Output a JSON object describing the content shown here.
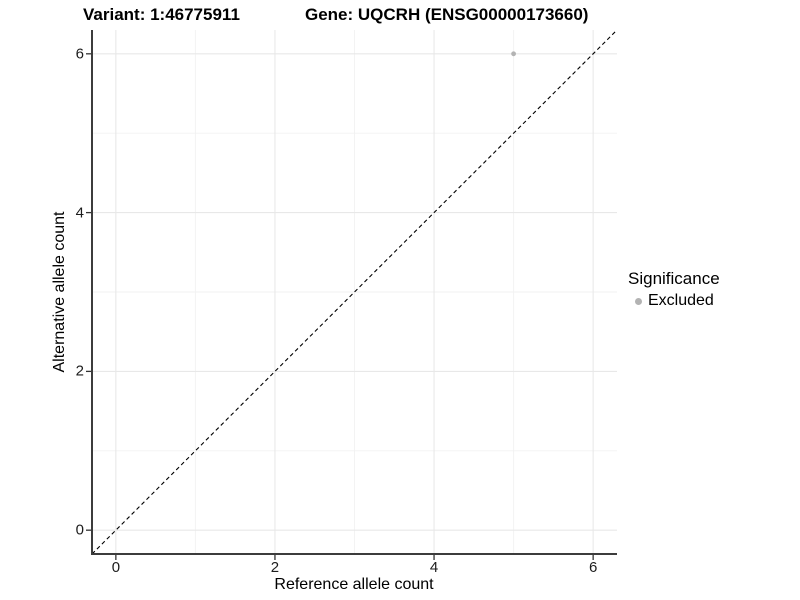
{
  "chart_data": {
    "type": "scatter",
    "titles": {
      "left": "Variant: 1:46775911",
      "right": "Gene: UQCRH (ENSG00000173660)"
    },
    "xlabel": "Reference allele count",
    "ylabel": "Alternative allele count",
    "xlim": [
      -0.3,
      6.3
    ],
    "ylim": [
      -0.3,
      6.3
    ],
    "x_major_ticks": [
      0,
      2,
      4,
      6
    ],
    "y_major_ticks": [
      0,
      2,
      4,
      6
    ],
    "x_minor_ticks": [
      1,
      3,
      5
    ],
    "y_minor_ticks": [
      1,
      3,
      5
    ],
    "grid": true,
    "points": [
      {
        "x": 5,
        "y": 6,
        "series": "Excluded"
      }
    ],
    "reference_line": {
      "slope": 1,
      "intercept": 0,
      "style": "dashed",
      "color": "#000000"
    },
    "legend": {
      "title": "Significance",
      "position": "right",
      "items": [
        {
          "label": "Excluded",
          "color": "#b3b3b3",
          "marker": "circle"
        }
      ]
    },
    "style": {
      "background": "#ffffff",
      "grid_major_color": "#e8e8e8",
      "grid_minor_color": "#f2f2f2",
      "axis_line_color": "#3c3c3c",
      "tick_color": "#333333",
      "point_color": "#b3b3b3"
    }
  }
}
